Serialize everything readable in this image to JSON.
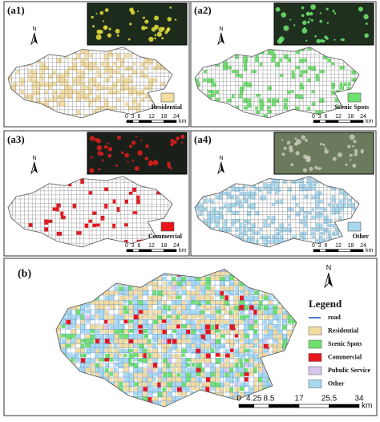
{
  "panels": [
    {
      "label": "(a1)",
      "north": "N",
      "legend": "Residential",
      "color": "#f3dca0",
      "scale": {
        "ticks": [
          0,
          3,
          6,
          12,
          18,
          24
        ],
        "unit": "km"
      }
    },
    {
      "label": "(a2)",
      "north": "N",
      "legend": "Scenic Spots",
      "color": "#6fe06f",
      "scale": {
        "ticks": [
          0,
          3,
          6,
          12,
          18,
          24
        ],
        "unit": "km"
      }
    },
    {
      "label": "(a3)",
      "north": "N",
      "legend": "Commercial",
      "color": "#e8141c",
      "scale": {
        "ticks": [
          0,
          3,
          6,
          12,
          18,
          24
        ],
        "unit": "km"
      }
    },
    {
      "label": "(a4)",
      "north": "N",
      "legend": "Other",
      "color": "#a8d8ee",
      "scale": {
        "ticks": [
          0,
          3,
          6,
          12,
          18,
          24
        ],
        "unit": "km"
      }
    }
  ],
  "main": {
    "label": "(b)",
    "north": "N",
    "legend": {
      "title": "Legend",
      "items": [
        {
          "label": "road",
          "color": "#4a7fd0"
        },
        {
          "label": "Residential",
          "color": "#f3dca0"
        },
        {
          "label": "Scenic Spots",
          "color": "#6fe06f"
        },
        {
          "label": "Commercial",
          "color": "#e8141c"
        },
        {
          "label": "Pubulic Service",
          "color": "#d8c4ec"
        },
        {
          "label": "Other",
          "color": "#a8d8ee"
        }
      ]
    },
    "scale": {
      "ticks": [
        0,
        4.25,
        8.5,
        17,
        25.5,
        34
      ],
      "unit": "km"
    }
  }
}
